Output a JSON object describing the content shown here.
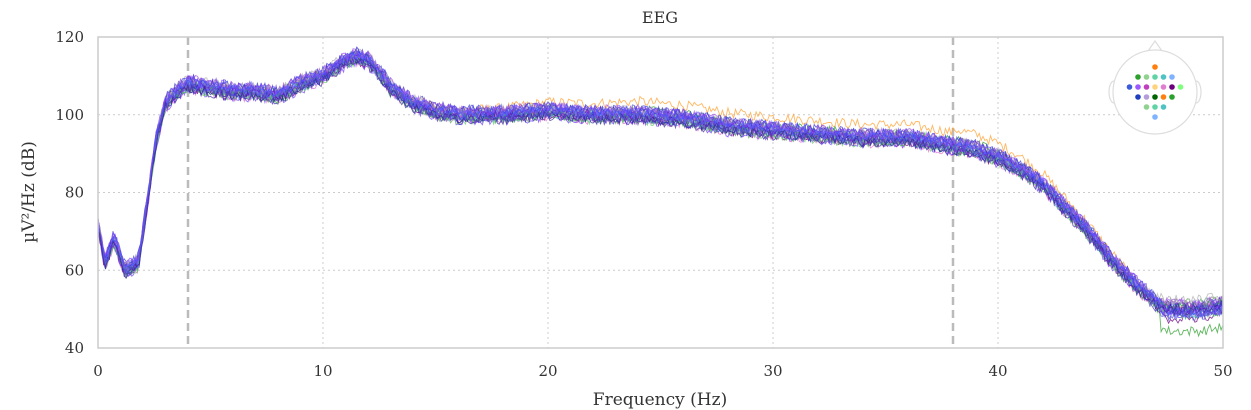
{
  "chart_data": {
    "type": "line",
    "title": "EEG",
    "xlabel": "Frequency (Hz)",
    "ylabel": "µV²/Hz (dB)",
    "xlim": [
      0,
      50
    ],
    "ylim": [
      40,
      120
    ],
    "x_ticks": [
      0,
      10,
      20,
      30,
      40,
      50
    ],
    "y_ticks": [
      40,
      60,
      80,
      100,
      120
    ],
    "x_tick_labels": [
      "0",
      "10",
      "20",
      "30",
      "40",
      "50"
    ],
    "y_tick_labels": [
      "40",
      "60",
      "80",
      "100",
      "120"
    ],
    "grid": true,
    "vertical_markers": [
      4,
      38
    ],
    "sensor_legend_position": "top-right",
    "sensor_legend_colors": [
      "#ff7f0e",
      "#2ca02c",
      "#8fd18f",
      "#5fd3a6",
      "#4dc3c3",
      "#7fb3ff",
      "#3b5bdb",
      "#9b59ff",
      "#c03fbf",
      "#ffd27f",
      "#e07fd0",
      "#6a0080",
      "#7fff7f",
      "#1f3fbf",
      "#b39ddb",
      "#006400"
    ],
    "series_envelope": {
      "x": [
        0,
        0.3,
        0.7,
        1.2,
        1.8,
        2.2,
        2.6,
        3.0,
        3.5,
        4,
        5,
        6,
        7,
        8,
        9,
        10,
        10.5,
        11,
        11.5,
        12,
        12.5,
        13,
        14,
        15,
        16,
        18,
        20,
        22,
        24,
        26,
        28,
        30,
        32,
        34,
        36,
        37,
        38,
        39,
        40,
        41,
        42,
        43,
        44,
        45,
        46,
        47,
        47.5,
        48,
        49,
        50
      ],
      "y": [
        72,
        62,
        68,
        60,
        62,
        78,
        94,
        103,
        106,
        108,
        107,
        106,
        106,
        105,
        108,
        110,
        112,
        114,
        115,
        114,
        111,
        107,
        103,
        101,
        100,
        100,
        101,
        100,
        100,
        99,
        97,
        96,
        95,
        94,
        94,
        93,
        92,
        91,
        89,
        86,
        82,
        76,
        70,
        63,
        57,
        52,
        50,
        50,
        50,
        51
      ]
    },
    "series_count": 32,
    "series_colors": [
      "#ff9f2e",
      "#2ca02c",
      "#55cc55",
      "#7fe07f",
      "#3fc3a0",
      "#4dc3c3",
      "#5fa8ff",
      "#7f7fff",
      "#5a4fcf",
      "#3b3bd0",
      "#7f3fbf",
      "#9b59ff",
      "#c03fbf",
      "#e06fd0",
      "#6a0080",
      "#4a2a9f",
      "#999999",
      "#b0b0b0",
      "#8a8aff",
      "#2f4fff",
      "#6f3fff",
      "#a050e0",
      "#5a6fff",
      "#3fa060",
      "#70d070",
      "#1f1fa0",
      "#4040e0",
      "#7020c0",
      "#8050ff",
      "#5050ff",
      "#6060d0",
      "#4030a0"
    ]
  }
}
